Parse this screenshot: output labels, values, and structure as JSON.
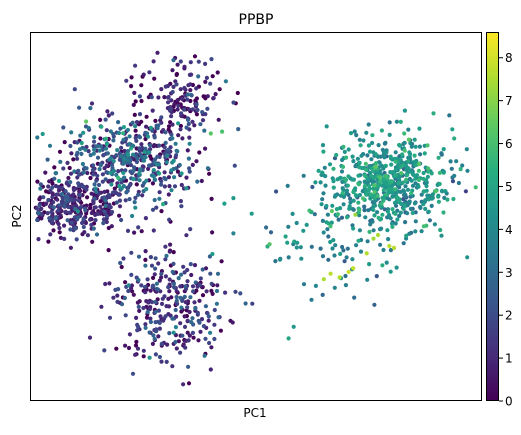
{
  "chart_data": {
    "type": "scatter",
    "title": "PPBP",
    "xlabel": "PC1",
    "ylabel": "PC2",
    "xlim": [
      -10,
      10
    ],
    "ylim": [
      -10,
      10
    ],
    "grid": false,
    "colorbar": {
      "label": "",
      "colormap": "viridis",
      "min": 0,
      "max": 8.6,
      "ticks": [
        "0",
        "1",
        "2",
        "3",
        "4",
        "5",
        "6",
        "7",
        "8"
      ]
    },
    "colors": {
      "axis": "#000000",
      "background": "#ffffff"
    },
    "clusters": [
      {
        "name": "",
        "center": [
          -8.2,
          0.5
        ],
        "spread": [
          1.2,
          0.8
        ],
        "count": 360,
        "value_mean": 0.8,
        "value_sd": 0.9
      },
      {
        "name": "",
        "center": [
          -5.6,
          3.0
        ],
        "spread": [
          1.6,
          1.3
        ],
        "count": 460,
        "value_mean": 2.0,
        "value_sd": 1.4
      },
      {
        "name": "",
        "center": [
          -3.3,
          6.4
        ],
        "spread": [
          1.0,
          1.1
        ],
        "count": 160,
        "value_mean": 0.7,
        "value_sd": 0.9
      },
      {
        "name": "",
        "center": [
          -3.9,
          -4.6
        ],
        "spread": [
          1.3,
          1.5
        ],
        "count": 320,
        "value_mean": 1.2,
        "value_sd": 1.1
      },
      {
        "name": "",
        "center": [
          6.0,
          1.8
        ],
        "spread": [
          1.4,
          1.3
        ],
        "count": 600,
        "value_mean": 4.3,
        "value_sd": 0.8
      },
      {
        "name": "",
        "center": [
          3.2,
          -1.2
        ],
        "spread": [
          1.5,
          1.8
        ],
        "count": 110,
        "value_mean": 3.9,
        "value_sd": 0.7
      }
    ],
    "highlights": [
      {
        "x": 3.3,
        "y": -3.1,
        "value": 7.7
      },
      {
        "x": 3.7,
        "y": -3.3,
        "value": 7.6
      },
      {
        "x": 4.1,
        "y": -3.0,
        "value": 7.9
      },
      {
        "x": 3.0,
        "y": -3.4,
        "value": 7.5
      },
      {
        "x": 4.3,
        "y": -2.8,
        "value": 7.8
      },
      {
        "x": 5.4,
        "y": -1.0,
        "value": 7.5
      },
      {
        "x": 5.9,
        "y": -1.6,
        "value": 7.7
      },
      {
        "x": 6.1,
        "y": -1.7,
        "value": 7.8
      },
      {
        "x": 5.2,
        "y": -1.2,
        "value": 7.4
      },
      {
        "x": 4.4,
        "y": 0.1,
        "value": 7.3
      },
      {
        "x": 4.9,
        "y": -2.0,
        "value": 7.6
      },
      {
        "x": -2.0,
        "y": 4.5,
        "value": 6.3
      },
      {
        "x": -1.5,
        "y": 4.6,
        "value": 6.1
      },
      {
        "x": -6.1,
        "y": 2.1,
        "value": 5.8
      },
      {
        "x": -1.0,
        "y": 1.0,
        "value": 4.6
      },
      {
        "x": 0.6,
        "y": -1.5,
        "value": 6.2
      },
      {
        "x": -1.4,
        "y": 0.7,
        "value": 4.8
      }
    ]
  }
}
